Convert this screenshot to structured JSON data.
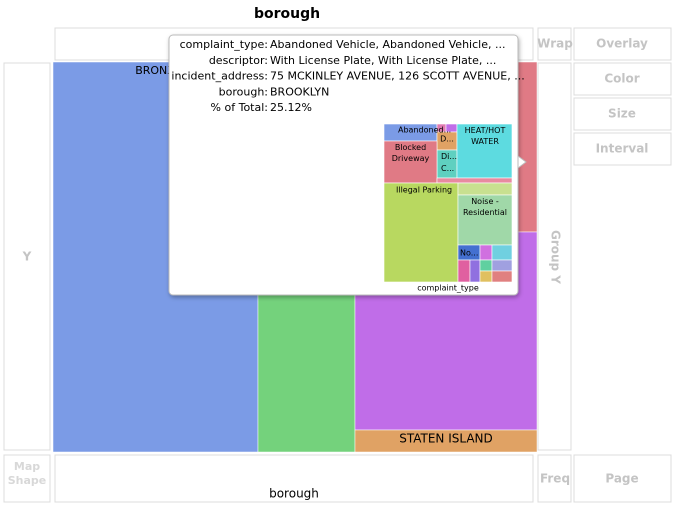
{
  "header": {
    "title": "borough"
  },
  "drop_zones": {
    "group_x": "",
    "wrap": "Wrap",
    "overlay": "Overlay",
    "color": "Color",
    "size": "Size",
    "interval": "Interval",
    "y": "Y",
    "group_y": "Group Y",
    "map_shape": "Map Shape",
    "x": "borough",
    "freq": "Freq",
    "page": "Page"
  },
  "plot": {
    "labels": [
      "BRONX",
      "STATEN ISLAND"
    ]
  },
  "tooltip": {
    "rows": [
      [
        "complaint_type:",
        "Abandoned Vehicle, Abandoned Vehicle, ..."
      ],
      [
        "descriptor:",
        "With License Plate, With License Plate, ..."
      ],
      [
        "incident_address:",
        "75 MCKINLEY AVENUE, 126 SCOTT AVENUE, ..."
      ],
      [
        "borough:",
        "BROOKLYN"
      ],
      [
        "% of Total:",
        "25.12%"
      ]
    ],
    "thumbnail": {
      "cells": [
        "Abandoned...",
        "D...",
        "Di... C...",
        "Blocked Driveway",
        "HEAT/HOT WATER",
        "Illegal Parking",
        "Noise - Residential",
        "No..."
      ],
      "caption": "complaint_type"
    }
  }
}
